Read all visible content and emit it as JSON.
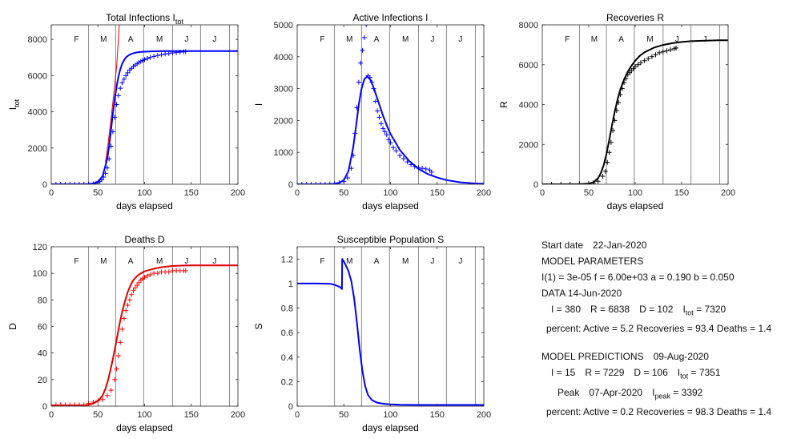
{
  "chart_data": [
    {
      "id": "total",
      "type": "line",
      "title": "Total Infections I",
      "title_sub": "tot",
      "xlabel": "days elapsed",
      "ylabel": "I",
      "ylabel_sub": "tot",
      "xlim": [
        0,
        200
      ],
      "ylim": [
        0,
        8800
      ],
      "xticks": [
        0,
        50,
        100,
        150,
        200
      ],
      "yticks": [
        0,
        2000,
        4000,
        6000,
        8000
      ],
      "month_lines": [
        40,
        69,
        99,
        130,
        160,
        191
      ],
      "months": [
        {
          "x": 27,
          "label": "F"
        },
        {
          "x": 56,
          "label": "M"
        },
        {
          "x": 85,
          "label": "A"
        },
        {
          "x": 116,
          "label": "M"
        },
        {
          "x": 145,
          "label": "J"
        },
        {
          "x": 175,
          "label": "J"
        }
      ],
      "series": [
        {
          "kind": "markers",
          "color": "#0000ff",
          "x": [
            0,
            5,
            10,
            15,
            20,
            25,
            30,
            35,
            40,
            45,
            48,
            50,
            52,
            54,
            56,
            58,
            60,
            62,
            64,
            66,
            68,
            70,
            72,
            74,
            76,
            78,
            80,
            82,
            84,
            86,
            88,
            90,
            92,
            94,
            96,
            98,
            100,
            103,
            106,
            110,
            114,
            118,
            122,
            126,
            130,
            134,
            138,
            142,
            144
          ],
          "y": [
            0,
            0,
            0,
            0,
            0,
            0,
            0,
            2,
            10,
            30,
            60,
            100,
            160,
            250,
            400,
            600,
            900,
            1400,
            2100,
            2900,
            3700,
            4400,
            4900,
            5300,
            5600,
            5800,
            6000,
            6150,
            6300,
            6400,
            6500,
            6580,
            6650,
            6720,
            6780,
            6830,
            6880,
            6940,
            7000,
            7060,
            7110,
            7150,
            7190,
            7220,
            7250,
            7270,
            7290,
            7310,
            7320
          ]
        },
        {
          "kind": "line",
          "color": "#0000ff",
          "width": 2,
          "x": [
            0,
            30,
            40,
            45,
            50,
            55,
            60,
            62,
            64,
            66,
            68,
            70,
            72,
            74,
            76,
            78,
            80,
            83,
            86,
            90,
            95,
            100,
            110,
            120,
            130,
            140,
            150,
            175,
            200
          ],
          "y": [
            0,
            0,
            10,
            40,
            130,
            450,
            1400,
            2100,
            3000,
            3900,
            4700,
            5400,
            5950,
            6350,
            6650,
            6850,
            7000,
            7120,
            7200,
            7260,
            7300,
            7320,
            7340,
            7348,
            7350,
            7351,
            7351,
            7351,
            7351
          ]
        },
        {
          "kind": "line",
          "color": "#e00000",
          "width": 1,
          "x": [
            58,
            61,
            64,
            67,
            70,
            72,
            74
          ],
          "y": [
            1200,
            2300,
            3600,
            5000,
            6500,
            8000,
            9800
          ]
        }
      ]
    },
    {
      "id": "active",
      "type": "line",
      "title": "Active Infections I",
      "xlabel": "days elapsed",
      "ylabel": "I",
      "xlim": [
        0,
        200
      ],
      "ylim": [
        0,
        5000
      ],
      "xticks": [
        0,
        50,
        100,
        150,
        200
      ],
      "yticks": [
        0,
        1000,
        2000,
        3000,
        4000,
        5000
      ],
      "month_lines": [
        40,
        69,
        99,
        130,
        160,
        191
      ],
      "months": [
        {
          "x": 27,
          "label": "F"
        },
        {
          "x": 56,
          "label": "M"
        },
        {
          "x": 85,
          "label": "A"
        },
        {
          "x": 116,
          "label": "M"
        },
        {
          "x": 145,
          "label": "J"
        },
        {
          "x": 175,
          "label": "J"
        }
      ],
      "series": [
        {
          "kind": "markers",
          "color": "#0000ff",
          "x": [
            0,
            5,
            10,
            15,
            20,
            25,
            30,
            35,
            40,
            45,
            50,
            54,
            58,
            60,
            62,
            64,
            66,
            68,
            70,
            72,
            74,
            76,
            78,
            80,
            82,
            84,
            86,
            88,
            90,
            92,
            94,
            96,
            98,
            100,
            103,
            106,
            110,
            114,
            118,
            122,
            126,
            130,
            134,
            138,
            142,
            144
          ],
          "y": [
            0,
            0,
            0,
            0,
            0,
            0,
            0,
            5,
            20,
            50,
            90,
            200,
            500,
            900,
            1600,
            2400,
            3200,
            3800,
            4200,
            4600,
            5000,
            3400,
            3350,
            3200,
            3000,
            2600,
            2300,
            2100,
            1900,
            1750,
            1650,
            1550,
            1400,
            1300,
            1150,
            1050,
            900,
            800,
            700,
            620,
            560,
            520,
            500,
            480,
            450,
            380
          ]
        },
        {
          "kind": "line",
          "color": "#0000ff",
          "width": 2,
          "x": [
            0,
            30,
            40,
            45,
            50,
            55,
            60,
            63,
            66,
            69,
            72,
            75,
            78,
            81,
            84,
            88,
            92,
            96,
            100,
            110,
            120,
            130,
            140,
            150,
            160,
            175,
            190,
            200
          ],
          "y": [
            0,
            0,
            10,
            40,
            130,
            420,
            1150,
            1800,
            2500,
            3000,
            3300,
            3380,
            3300,
            3100,
            2850,
            2500,
            2150,
            1850,
            1580,
            1080,
            730,
            480,
            320,
            210,
            130,
            60,
            25,
            15
          ]
        }
      ]
    },
    {
      "id": "recoveries",
      "type": "line",
      "title": "Recoveries  R",
      "xlabel": "days elapsed",
      "ylabel": "R",
      "xlim": [
        0,
        200
      ],
      "ylim": [
        0,
        8000
      ],
      "xticks": [
        0,
        50,
        100,
        150,
        200
      ],
      "yticks": [
        0,
        2000,
        4000,
        6000,
        8000
      ],
      "month_lines": [
        40,
        69,
        99,
        130,
        160,
        191
      ],
      "months": [
        {
          "x": 27,
          "label": "F"
        },
        {
          "x": 56,
          "label": "M"
        },
        {
          "x": 85,
          "label": "A"
        },
        {
          "x": 116,
          "label": "M"
        },
        {
          "x": 145,
          "label": "J"
        },
        {
          "x": 175,
          "label": "J"
        }
      ],
      "series": [
        {
          "kind": "markers",
          "color": "#000000",
          "x": [
            0,
            10,
            20,
            30,
            40,
            50,
            55,
            60,
            65,
            68,
            70,
            72,
            74,
            76,
            78,
            80,
            82,
            84,
            86,
            88,
            90,
            92,
            94,
            96,
            98,
            100,
            103,
            106,
            110,
            114,
            118,
            122,
            126,
            130,
            134,
            138,
            142,
            144
          ],
          "y": [
            0,
            0,
            0,
            0,
            20,
            40,
            60,
            150,
            400,
            650,
            1100,
            1600,
            2100,
            2700,
            3200,
            3700,
            4100,
            4500,
            4800,
            5100,
            5300,
            5500,
            5600,
            5700,
            5800,
            5900,
            6000,
            6100,
            6200,
            6300,
            6400,
            6500,
            6600,
            6650,
            6700,
            6750,
            6800,
            6838
          ]
        },
        {
          "kind": "line",
          "color": "#000000",
          "width": 2,
          "x": [
            0,
            40,
            50,
            55,
            60,
            63,
            66,
            69,
            72,
            75,
            78,
            81,
            84,
            88,
            92,
            96,
            100,
            105,
            110,
            120,
            130,
            140,
            150,
            160,
            175,
            190,
            200
          ],
          "y": [
            0,
            5,
            30,
            100,
            300,
            560,
            950,
            1500,
            2200,
            2950,
            3650,
            4250,
            4750,
            5250,
            5650,
            5950,
            6200,
            6450,
            6620,
            6850,
            6990,
            7080,
            7140,
            7180,
            7210,
            7225,
            7229
          ]
        }
      ]
    },
    {
      "id": "deaths",
      "type": "line",
      "title": "Deaths  D",
      "xlabel": "days elapsed",
      "ylabel": "D",
      "xlim": [
        0,
        200
      ],
      "ylim": [
        0,
        120
      ],
      "xticks": [
        0,
        50,
        100,
        150,
        200
      ],
      "yticks": [
        0,
        20,
        40,
        60,
        80,
        100,
        120
      ],
      "month_lines": [
        40,
        69,
        99,
        130,
        160,
        191
      ],
      "months": [
        {
          "x": 27,
          "label": "F"
        },
        {
          "x": 56,
          "label": "M"
        },
        {
          "x": 85,
          "label": "A"
        },
        {
          "x": 116,
          "label": "M"
        },
        {
          "x": 145,
          "label": "J"
        },
        {
          "x": 175,
          "label": "J"
        }
      ],
      "series": [
        {
          "kind": "markers",
          "color": "#ff0000",
          "x": [
            0,
            5,
            10,
            15,
            20,
            25,
            30,
            35,
            40,
            45,
            50,
            55,
            60,
            64,
            68,
            70,
            72,
            74,
            76,
            78,
            80,
            82,
            84,
            86,
            88,
            90,
            92,
            94,
            96,
            98,
            100,
            103,
            106,
            110,
            114,
            118,
            122,
            126,
            130,
            134,
            138,
            142,
            144
          ],
          "y": [
            1,
            1,
            1,
            1,
            1,
            1,
            1,
            1,
            2,
            3,
            4,
            5,
            8,
            12,
            20,
            28,
            38,
            48,
            58,
            66,
            72,
            76,
            80,
            84,
            87,
            89,
            91,
            93,
            95,
            96,
            97,
            98,
            99,
            100,
            100,
            101,
            101,
            101,
            102,
            102,
            102,
            102,
            102
          ]
        },
        {
          "kind": "line",
          "color": "#e00000",
          "width": 2,
          "x": [
            0,
            30,
            40,
            45,
            50,
            55,
            58,
            61,
            64,
            67,
            70,
            73,
            76,
            79,
            82,
            85,
            88,
            92,
            96,
            100,
            110,
            120,
            130,
            140,
            150,
            170,
            200
          ],
          "y": [
            0,
            0,
            1,
            2,
            4,
            8,
            13,
            20,
            29,
            39,
            50,
            61,
            71,
            79,
            86,
            91,
            95,
            98,
            100,
            101.5,
            103.5,
            104.8,
            105.5,
            105.8,
            106,
            106,
            106
          ]
        }
      ]
    },
    {
      "id": "susceptible",
      "type": "line",
      "title": "Susceptible Population S",
      "xlabel": "days elapsed",
      "ylabel": "S",
      "xlim": [
        0,
        200
      ],
      "ylim": [
        0,
        1.3
      ],
      "xticks": [
        0,
        50,
        100,
        150,
        200
      ],
      "yticks": [
        0,
        0.2,
        0.4,
        0.6,
        0.8,
        1,
        1.2
      ],
      "month_lines": [
        40,
        69,
        99,
        130,
        160,
        191
      ],
      "months": [
        {
          "x": 27,
          "label": "F"
        },
        {
          "x": 56,
          "label": "M"
        },
        {
          "x": 85,
          "label": "A"
        },
        {
          "x": 116,
          "label": "M"
        },
        {
          "x": 145,
          "label": "J"
        },
        {
          "x": 175,
          "label": "J"
        }
      ],
      "series": [
        {
          "kind": "line",
          "color": "#0000ff",
          "width": 2,
          "x": [
            0,
            20,
            35,
            40,
            45,
            47,
            48,
            48.2,
            50,
            52,
            55,
            58,
            61,
            64,
            67,
            70,
            73,
            76,
            80,
            85,
            90,
            95,
            100,
            110,
            130,
            160,
            200
          ],
          "y": [
            1,
            1,
            0.998,
            0.99,
            0.975,
            0.965,
            0.955,
            1.2,
            1.18,
            1.15,
            1.1,
            1.02,
            0.88,
            0.68,
            0.46,
            0.28,
            0.16,
            0.09,
            0.05,
            0.03,
            0.022,
            0.018,
            0.015,
            0.012,
            0.01,
            0.01,
            0.01
          ]
        }
      ]
    }
  ],
  "info": {
    "start_label": "Start date",
    "start_date": "22-Jan-2020",
    "model_params_heading": "MODEL PARAMETERS",
    "params_line": "I(1) = 3e-05  f = 6.00e+03  a = 0.190  b = 0.050",
    "data_heading": "DATA 14-Jun-2020",
    "data_I": "I =   380",
    "data_R": "R =  6838",
    "data_D": "D =   102",
    "data_Itot_label": "I",
    "data_Itot_sub": "tot",
    "data_Itot_value": "=  7320",
    "data_percent": "percent: Active = 5.2  Recoveries = 93.4   Deaths = 1.4",
    "pred_heading": "MODEL PREDICTIONS",
    "pred_date": "09-Aug-2020",
    "pred_I": "I =   15",
    "pred_R": "R =  7229",
    "pred_D": "D =   106",
    "pred_Itot_label": "I",
    "pred_Itot_sub": "tot",
    "pred_Itot_value": "=  7351",
    "peak_label": "Peak",
    "peak_date": "07-Apr-2020",
    "peak_I_label": "I",
    "peak_I_sub": "peak",
    "peak_I_value": "=  3392",
    "pred_percent": "percent: Active = 0.2  Recoveries = 98.3   Deaths = 1.4"
  }
}
